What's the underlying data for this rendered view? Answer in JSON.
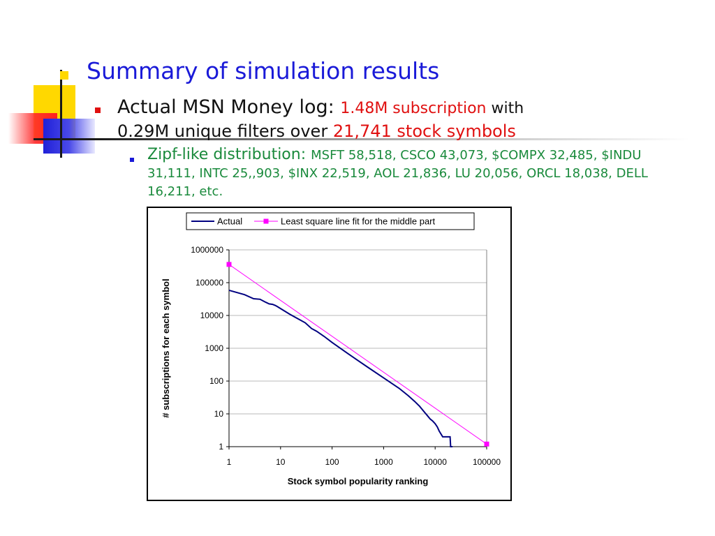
{
  "slide": {
    "title": "Summary of simulation results",
    "bullet1": {
      "text_a": "Actual MSN Money log: ",
      "red_a": "1.48M subscription",
      "text_b": " with",
      "text_c": "0.29M unique filters over ",
      "red_b": "21,741 stock symbols"
    },
    "bullet2": {
      "lead": "Zipf-like distribution: ",
      "detail": "MSFT 58,518, CSCO 43,073, $COMPX 32,485, $INDU 31,111, INTC 25,,903, $INX 22,519, AOL 21,836, LU 20,056, ORCL 18,038, DELL 16,211, etc."
    },
    "colors": {
      "title": "#1a1ad8",
      "emphasis": "#e01010",
      "sub_bullet_text": "#1a8a3c"
    }
  },
  "chart_data": {
    "type": "line",
    "scale": "log-log",
    "xlabel": "Stock symbol popularity ranking",
    "ylabel": "# subscriptions for each symbol",
    "xlim": [
      1,
      100000
    ],
    "ylim": [
      1,
      1000000
    ],
    "x_ticks": [
      "1",
      "10",
      "100",
      "1000",
      "10000",
      "100000"
    ],
    "y_ticks": [
      "1",
      "10",
      "100",
      "1000",
      "10000",
      "100000",
      "1000000"
    ],
    "grid": "horizontal",
    "legend_position": "top",
    "series": [
      {
        "name": "Actual",
        "color": "#000080",
        "points": [
          [
            1,
            58518
          ],
          [
            2,
            43073
          ],
          [
            3,
            32485
          ],
          [
            4,
            31111
          ],
          [
            5,
            25903
          ],
          [
            6,
            22519
          ],
          [
            7,
            21836
          ],
          [
            8,
            20056
          ],
          [
            9,
            18038
          ],
          [
            10,
            16211
          ],
          [
            15,
            11000
          ],
          [
            20,
            8500
          ],
          [
            30,
            6000
          ],
          [
            40,
            4000
          ],
          [
            50,
            3300
          ],
          [
            70,
            2300
          ],
          [
            100,
            1500
          ],
          [
            200,
            700
          ],
          [
            300,
            450
          ],
          [
            500,
            260
          ],
          [
            1000,
            125
          ],
          [
            2000,
            60
          ],
          [
            3000,
            36
          ],
          [
            4000,
            24
          ],
          [
            5000,
            17
          ],
          [
            6000,
            12
          ],
          [
            7000,
            9
          ],
          [
            8000,
            7
          ],
          [
            9000,
            6
          ],
          [
            10000,
            5
          ],
          [
            11000,
            4
          ],
          [
            12000,
            3
          ],
          [
            14000,
            2
          ],
          [
            16000,
            2
          ],
          [
            18000,
            2
          ],
          [
            19500,
            2
          ],
          [
            20000,
            1
          ],
          [
            21741,
            1
          ]
        ]
      },
      {
        "name": "Least square line fit for the middle part",
        "color": "#ff00ff",
        "marker": "square",
        "points": [
          [
            1,
            360000
          ],
          [
            100000,
            1.2
          ]
        ]
      }
    ]
  }
}
